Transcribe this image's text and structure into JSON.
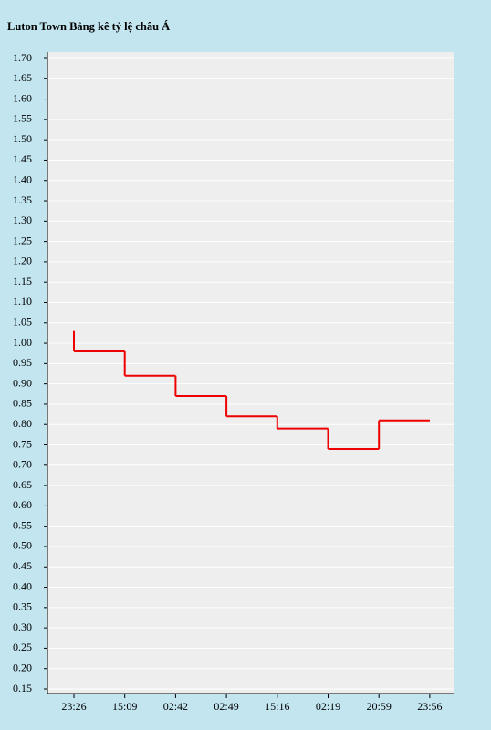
{
  "chart_data": {
    "type": "step",
    "title": "Luton Town Bảng kê tỷ lệ châu Á",
    "categories": [
      "23:26",
      "15:09",
      "02:42",
      "02:49",
      "15:16",
      "02:19",
      "20:59",
      "23:56"
    ],
    "start_value": 1.03,
    "series": [
      {
        "color": "#ee0000",
        "values": [
          0.98,
          0.92,
          0.87,
          0.82,
          0.79,
          0.74,
          0.81,
          0.81
        ]
      }
    ],
    "ylim": [
      0.15,
      1.7
    ],
    "yticks": [
      {
        "value": 0.15,
        "label": "0.15"
      },
      {
        "value": 0.2,
        "label": "0.20"
      },
      {
        "value": 0.25,
        "label": "0.25"
      },
      {
        "value": 0.3,
        "label": "0.30"
      },
      {
        "value": 0.35,
        "label": "0.35"
      },
      {
        "value": 0.4,
        "label": "0.40"
      },
      {
        "value": 0.45,
        "label": "0.45"
      },
      {
        "value": 0.5,
        "label": "0.50"
      },
      {
        "value": 0.55,
        "label": "0.55"
      },
      {
        "value": 0.6,
        "label": "0.60"
      },
      {
        "value": 0.65,
        "label": "0.65"
      },
      {
        "value": 0.7,
        "label": "0.70"
      },
      {
        "value": 0.75,
        "label": "0.75"
      },
      {
        "value": 0.8,
        "label": "0.80"
      },
      {
        "value": 0.85,
        "label": "0.85"
      },
      {
        "value": 0.9,
        "label": "0.90"
      },
      {
        "value": 0.95,
        "label": "0.95"
      },
      {
        "value": 1.0,
        "label": "1.00"
      },
      {
        "value": 1.05,
        "label": "1.05"
      },
      {
        "value": 1.1,
        "label": "1.10"
      },
      {
        "value": 1.15,
        "label": "1.15"
      },
      {
        "value": 1.2,
        "label": "1.20"
      },
      {
        "value": 1.25,
        "label": "1.25"
      },
      {
        "value": 1.3,
        "label": "1.30"
      },
      {
        "value": 1.35,
        "label": "1.35"
      },
      {
        "value": 1.4,
        "label": "1.40"
      },
      {
        "value": 1.45,
        "label": "1.45"
      },
      {
        "value": 1.5,
        "label": "1.50"
      },
      {
        "value": 1.55,
        "label": "1.55"
      },
      {
        "value": 1.6,
        "label": "1.60"
      },
      {
        "value": 1.65,
        "label": "1.65"
      },
      {
        "value": 1.7,
        "label": "1.70"
      }
    ],
    "grid": true
  }
}
